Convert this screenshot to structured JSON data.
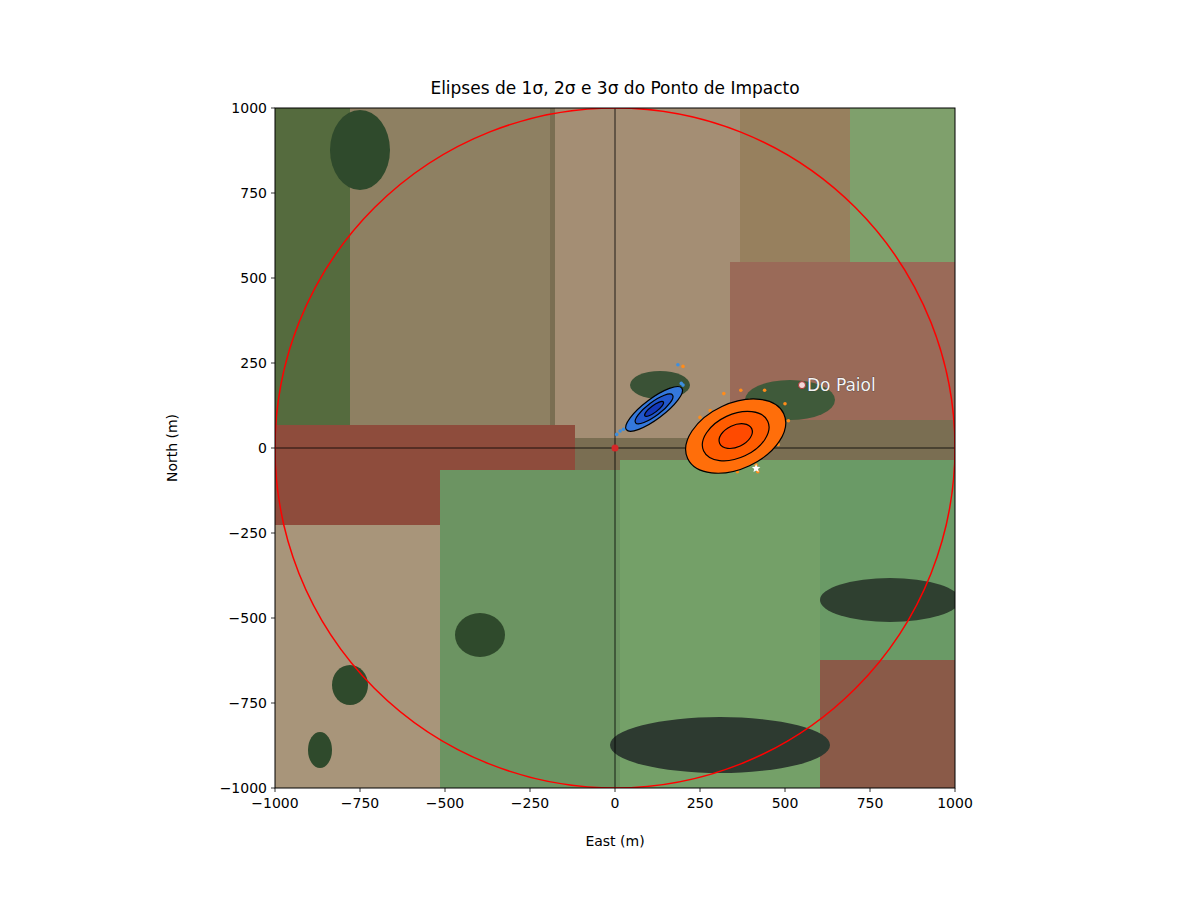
{
  "chart_data": {
    "type": "scatter",
    "title": "Elipses de 1σ, 2σ e 3σ do Ponto de Impacto",
    "x_label": "East (m)",
    "y_label": "North (m)",
    "xlim": [
      -1000,
      1000
    ],
    "ylim": [
      -1000,
      1000
    ],
    "xticks": [
      {
        "value": -1000,
        "label": "−1000"
      },
      {
        "value": -750,
        "label": "−750"
      },
      {
        "value": -500,
        "label": "−500"
      },
      {
        "value": -250,
        "label": "−250"
      },
      0,
      250,
      500,
      750,
      1000
    ],
    "yticks": [
      {
        "value": -1000,
        "label": "−1000"
      },
      {
        "value": -750,
        "label": "−750"
      },
      {
        "value": -500,
        "label": "−500"
      },
      {
        "value": -250,
        "label": "−250"
      },
      0,
      250,
      500,
      750,
      1000
    ],
    "grid": false,
    "hlines": [
      0
    ],
    "vlines": [
      0
    ],
    "circle": {
      "center": [
        0,
        0
      ],
      "radius": 1000,
      "color": "#ff0000"
    },
    "series": [
      {
        "color": "#3d8fe0",
        "marker": "circle",
        "x": [
          5,
          15,
          25,
          35,
          45,
          55,
          65,
          75,
          85,
          95,
          100,
          110,
          120,
          125,
          135,
          145,
          150,
          160,
          170,
          180,
          190,
          200,
          90,
          130,
          110,
          140,
          160,
          60,
          185,
          195
        ],
        "values": [
          40,
          50,
          55,
          65,
          70,
          80,
          85,
          95,
          100,
          105,
          110,
          115,
          120,
          125,
          130,
          140,
          145,
          150,
          160,
          165,
          175,
          185,
          95,
          115,
          125,
          125,
          160,
          70,
          245,
          190
        ],
        "ellipses": {
          "center": [
            115,
            115
          ],
          "cov": [
            [
              776,
              507
            ],
            [
              507,
              480
            ]
          ],
          "levels": [
            1,
            2,
            3
          ],
          "colors": [
            "#1438b8",
            "#2157cc",
            "#3478dc"
          ]
        }
      },
      {
        "color": "#ff8c1a",
        "marker": "circle",
        "x": [
          230,
          245,
          255,
          260,
          270,
          275,
          280,
          290,
          295,
          300,
          305,
          310,
          315,
          320,
          325,
          330,
          335,
          340,
          345,
          350,
          355,
          360,
          365,
          370,
          375,
          380,
          385,
          390,
          395,
          400,
          405,
          410,
          415,
          420,
          430,
          440,
          450,
          460,
          470,
          480,
          490,
          500,
          510,
          250,
          280,
          320,
          370,
          440,
          420,
          360,
          300,
          200
        ],
        "values": [
          20,
          -10,
          40,
          60,
          -20,
          80,
          10,
          -40,
          50,
          100,
          -5,
          30,
          70,
          -30,
          120,
          10,
          55,
          -50,
          90,
          25,
          -15,
          60,
          130,
          0,
          40,
          -35,
          85,
          15,
          140,
          -20,
          55,
          100,
          -50,
          30,
          75,
          -10,
          120,
          45,
          90,
          10,
          60,
          130,
          80,
          90,
          110,
          160,
          170,
          170,
          -70,
          -70,
          -60,
          240
        ],
        "ellipses": {
          "center": [
            355,
            35
          ],
          "cov": [
            [
              2403,
              643
            ],
            [
              643,
              1325
            ]
          ],
          "levels": [
            1,
            2,
            3
          ],
          "colors": [
            "#ff4a00",
            "#ff5c00",
            "#ff6e0a"
          ]
        }
      }
    ],
    "points": [
      {
        "x": 0,
        "y": 0,
        "color": "#d62728",
        "marker": "circle"
      },
      {
        "x": 415,
        "y": -60,
        "color": "#ffffff",
        "marker": "star"
      }
    ],
    "annotations": [
      {
        "text": "Do Paiol",
        "x": 550,
        "y": 185
      }
    ]
  }
}
